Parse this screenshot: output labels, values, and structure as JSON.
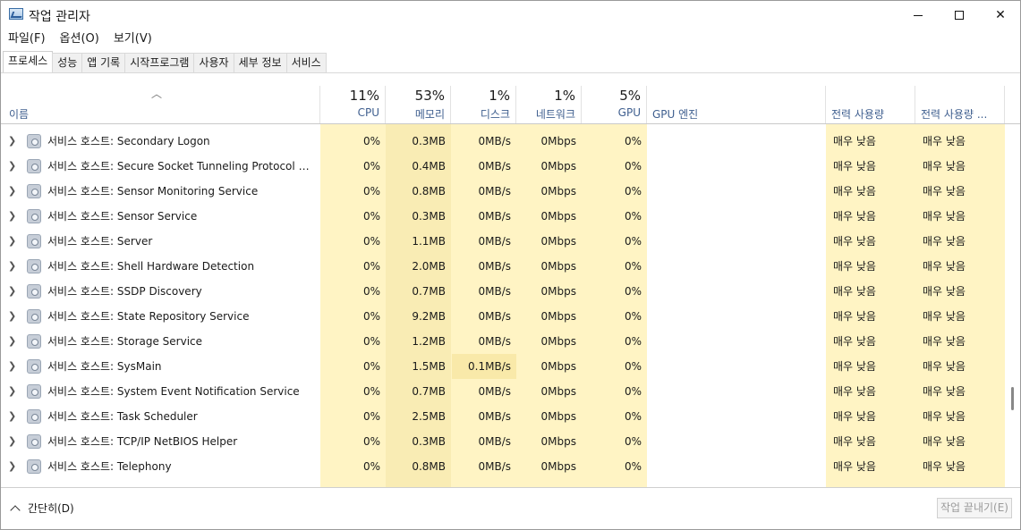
{
  "window": {
    "title": "작업 관리자"
  },
  "menu": [
    "파일(F)",
    "옵션(O)",
    "보기(V)"
  ],
  "tabs": [
    "프로세스",
    "성능",
    "앱 기록",
    "시작프로그램",
    "사용자",
    "세부 정보",
    "서비스"
  ],
  "active_tab": "프로세스",
  "columns": {
    "name": "이름",
    "cpu": {
      "pct": "11%",
      "label": "CPU"
    },
    "memory": {
      "pct": "53%",
      "label": "메모리"
    },
    "disk": {
      "pct": "1%",
      "label": "디스크"
    },
    "network": {
      "pct": "1%",
      "label": "네트워크"
    },
    "gpu": {
      "pct": "5%",
      "label": "GPU"
    },
    "gpu_engine": "GPU 엔진",
    "power": "전력 사용량",
    "power_trend": "전력 사용량 ..."
  },
  "rows": [
    {
      "name": "서비스 호스트: Secondary Logon",
      "cpu": "0%",
      "mem": "0.3MB",
      "disk": "0MB/s",
      "net": "0Mbps",
      "gpu": "0%",
      "power": "매우 낮음",
      "power_trend": "매우 낮음"
    },
    {
      "name": "서비스 호스트: Secure Socket Tunneling Protocol Ser...",
      "cpu": "0%",
      "mem": "0.4MB",
      "disk": "0MB/s",
      "net": "0Mbps",
      "gpu": "0%",
      "power": "매우 낮음",
      "power_trend": "매우 낮음"
    },
    {
      "name": "서비스 호스트: Sensor Monitoring Service",
      "cpu": "0%",
      "mem": "0.8MB",
      "disk": "0MB/s",
      "net": "0Mbps",
      "gpu": "0%",
      "power": "매우 낮음",
      "power_trend": "매우 낮음"
    },
    {
      "name": "서비스 호스트: Sensor Service",
      "cpu": "0%",
      "mem": "0.3MB",
      "disk": "0MB/s",
      "net": "0Mbps",
      "gpu": "0%",
      "power": "매우 낮음",
      "power_trend": "매우 낮음"
    },
    {
      "name": "서비스 호스트: Server",
      "cpu": "0%",
      "mem": "1.1MB",
      "disk": "0MB/s",
      "net": "0Mbps",
      "gpu": "0%",
      "power": "매우 낮음",
      "power_trend": "매우 낮음"
    },
    {
      "name": "서비스 호스트: Shell Hardware Detection",
      "cpu": "0%",
      "mem": "2.0MB",
      "disk": "0MB/s",
      "net": "0Mbps",
      "gpu": "0%",
      "power": "매우 낮음",
      "power_trend": "매우 낮음"
    },
    {
      "name": "서비스 호스트: SSDP Discovery",
      "cpu": "0%",
      "mem": "0.7MB",
      "disk": "0MB/s",
      "net": "0Mbps",
      "gpu": "0%",
      "power": "매우 낮음",
      "power_trend": "매우 낮음"
    },
    {
      "name": "서비스 호스트: State Repository Service",
      "cpu": "0%",
      "mem": "9.2MB",
      "disk": "0MB/s",
      "net": "0Mbps",
      "gpu": "0%",
      "power": "매우 낮음",
      "power_trend": "매우 낮음"
    },
    {
      "name": "서비스 호스트: Storage Service",
      "cpu": "0%",
      "mem": "1.2MB",
      "disk": "0MB/s",
      "net": "0Mbps",
      "gpu": "0%",
      "power": "매우 낮음",
      "power_trend": "매우 낮음"
    },
    {
      "name": "서비스 호스트: SysMain",
      "cpu": "0%",
      "mem": "1.5MB",
      "disk": "0.1MB/s",
      "net": "0Mbps",
      "gpu": "0%",
      "power": "매우 낮음",
      "power_trend": "매우 낮음",
      "disk_highlight": true
    },
    {
      "name": "서비스 호스트: System Event Notification Service",
      "cpu": "0%",
      "mem": "0.7MB",
      "disk": "0MB/s",
      "net": "0Mbps",
      "gpu": "0%",
      "power": "매우 낮음",
      "power_trend": "매우 낮음"
    },
    {
      "name": "서비스 호스트: Task Scheduler",
      "cpu": "0%",
      "mem": "2.5MB",
      "disk": "0MB/s",
      "net": "0Mbps",
      "gpu": "0%",
      "power": "매우 낮음",
      "power_trend": "매우 낮음"
    },
    {
      "name": "서비스 호스트: TCP/IP NetBIOS Helper",
      "cpu": "0%",
      "mem": "0.3MB",
      "disk": "0MB/s",
      "net": "0Mbps",
      "gpu": "0%",
      "power": "매우 낮음",
      "power_trend": "매우 낮음"
    },
    {
      "name": "서비스 호스트: Telephony",
      "cpu": "0%",
      "mem": "0.8MB",
      "disk": "0MB/s",
      "net": "0Mbps",
      "gpu": "0%",
      "power": "매우 낮음",
      "power_trend": "매우 낮음"
    }
  ],
  "footer": {
    "collapse_label": "간단히(D)",
    "end_task_label": "작업 끝내기(E)"
  },
  "colors": {
    "heat_light": "#fff4c4",
    "heat_mid": "#f9e9a9",
    "header_label": "#3f5f8f"
  }
}
